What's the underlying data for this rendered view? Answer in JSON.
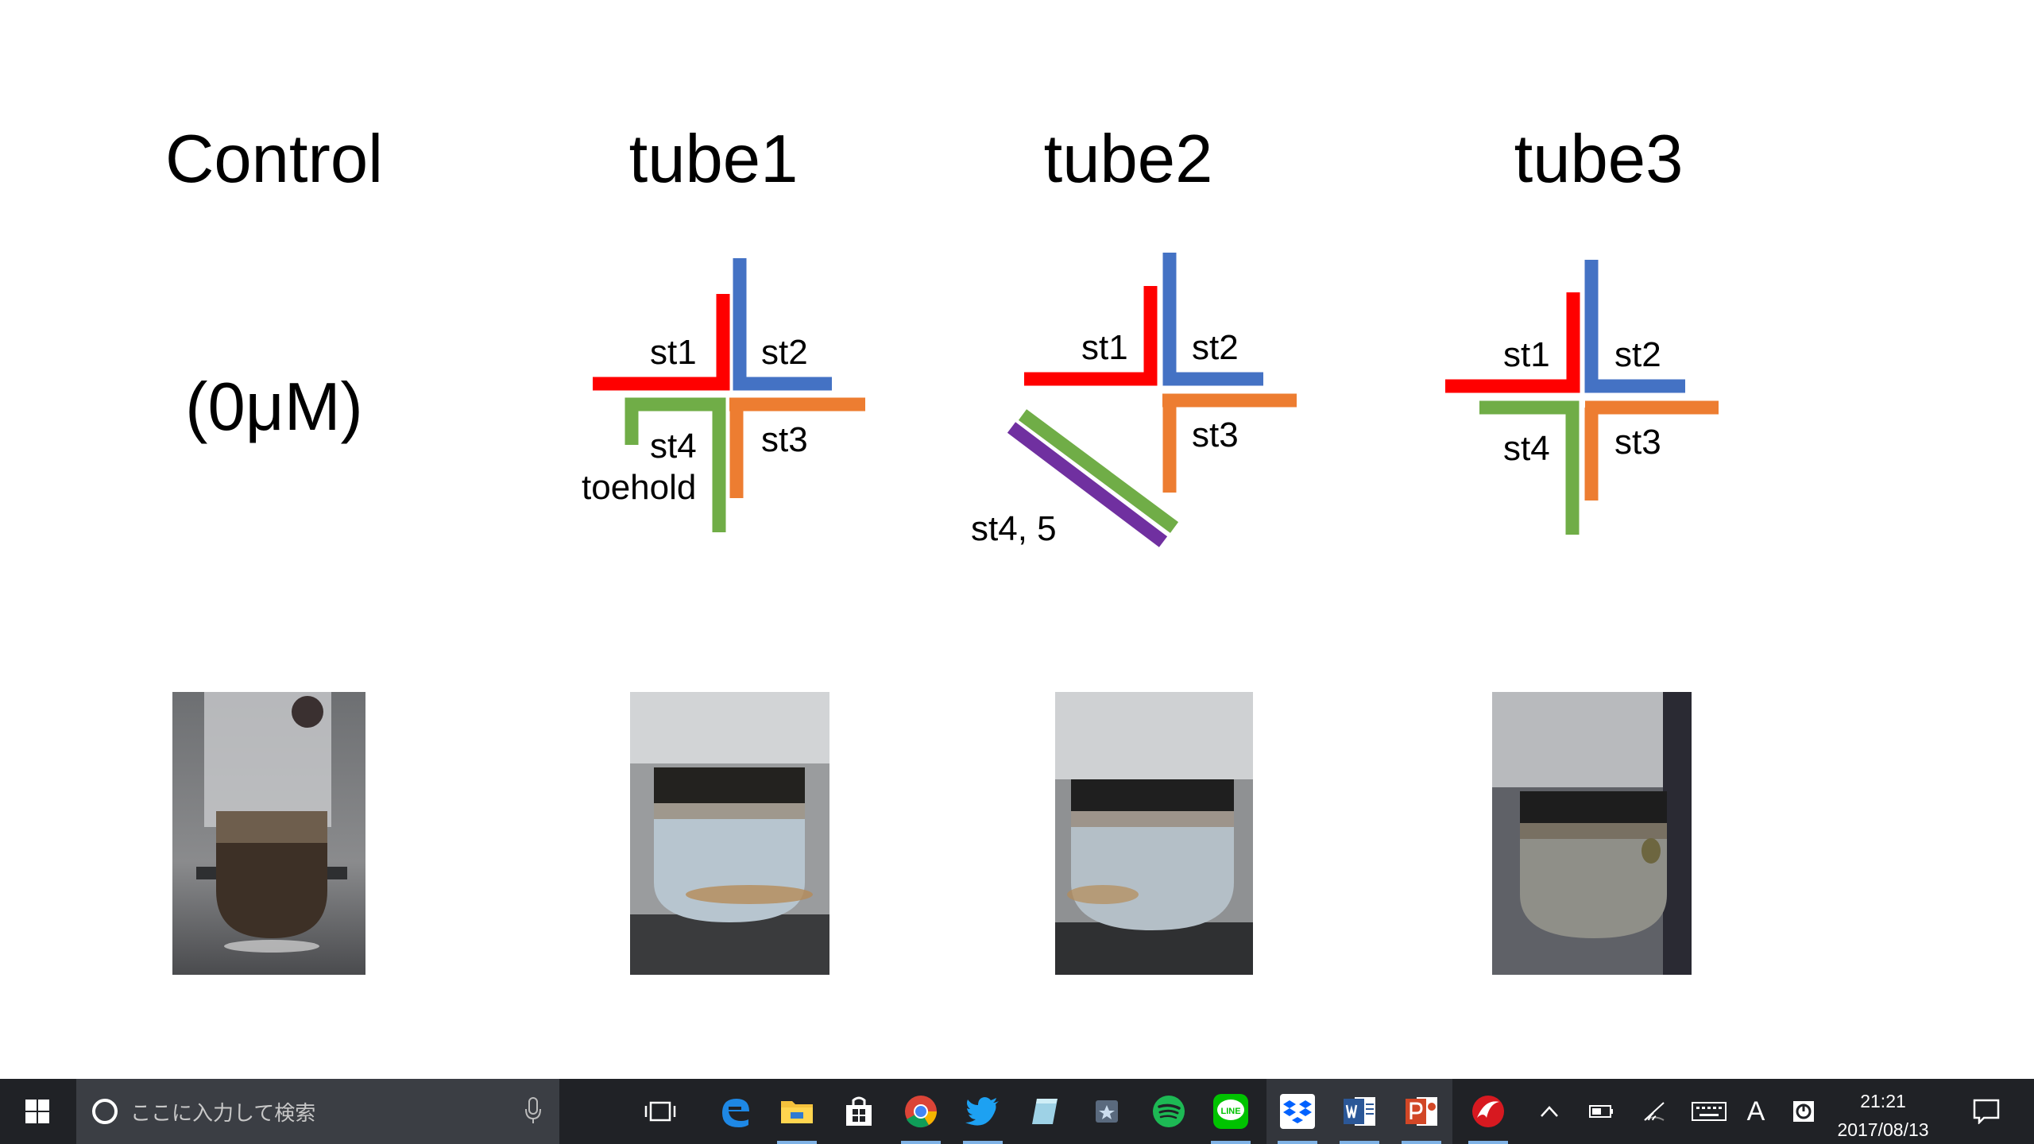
{
  "slide": {
    "titles": {
      "control": "Control",
      "tube1": "tube1",
      "tube2": "tube2",
      "tube3": "tube3"
    },
    "control_sub": "(0μM)",
    "tube1_labels": {
      "st1": "st1",
      "st2": "st2",
      "st3": "st3",
      "st4": "st4",
      "toehold": "toehold"
    },
    "tube2_labels": {
      "st1": "st1",
      "st2": "st2",
      "st3": "st3",
      "st45": "st4, 5"
    },
    "tube3_labels": {
      "st1": "st1",
      "st2": "st2",
      "st3": "st3",
      "st4": "st4"
    },
    "colors": {
      "st1": "#ff0000",
      "st2": "#4472c4",
      "st3": "#ed7d31",
      "st4": "#70ad47",
      "st5": "#7030a0"
    }
  },
  "taskbar": {
    "search_placeholder": "ここに入力して検索",
    "apps": [
      "task-view",
      "edge",
      "file-explorer",
      "store",
      "chrome",
      "twitter",
      "notes",
      "photos",
      "spotify",
      "line",
      "dropbox",
      "word",
      "powerpoint",
      "trend-micro"
    ],
    "line_label": "LINE",
    "ime_label": "A",
    "time": "21:21",
    "date": "2017/08/13"
  }
}
